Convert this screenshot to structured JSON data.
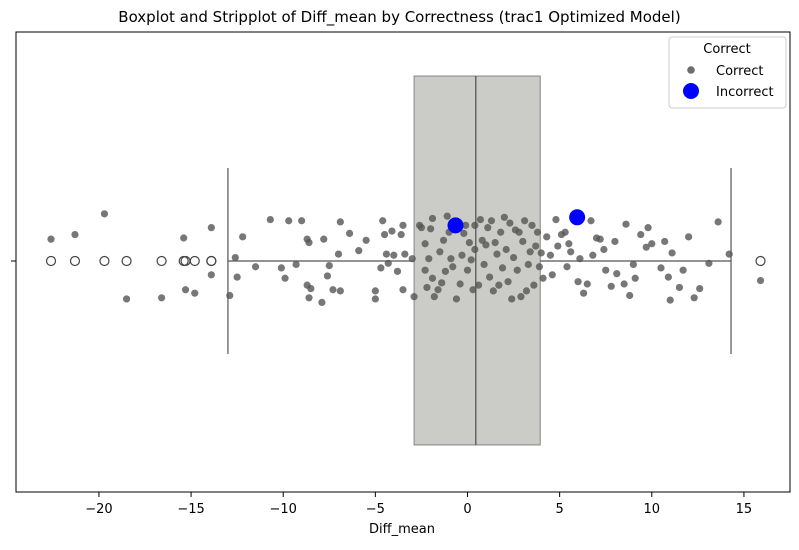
{
  "chart_data": {
    "type": "boxplot-stripplot",
    "title": "Boxplot and Stripplot of Diff_mean by Correctness (trac1 Optimized Model)",
    "xlabel": "Diff_mean",
    "ylabel": "",
    "xlim": [
      -24.5,
      17.5
    ],
    "x_ticks": [
      -20,
      -15,
      -10,
      -5,
      0,
      5,
      10,
      15
    ],
    "x_tick_labels": [
      "−20",
      "−15",
      "−10",
      "−5",
      "0",
      "5",
      "10",
      "15"
    ],
    "grid": false,
    "legend": {
      "title": "Correct",
      "placement": "top-right",
      "entries": [
        {
          "label": "Correct",
          "color": "#555555",
          "marker": "small-circle"
        },
        {
          "label": "Incorrect",
          "color": "#0000ff",
          "marker": "large-circle"
        }
      ]
    },
    "colors": {
      "box_fill": "#cbccc7",
      "box_edge": "#555555",
      "correct_points": "#555555",
      "incorrect_points": "#0000ff",
      "outlier_edge": "#444444"
    },
    "box": {
      "q1": -2.9,
      "median": 0.45,
      "q3": 3.95,
      "whisker_low": -13.0,
      "whisker_high": 14.3,
      "outliers": [
        -22.6,
        -21.3,
        -19.7,
        -18.5,
        -16.6,
        -15.4,
        -15.3,
        -14.8,
        -13.9,
        -13.9,
        15.9
      ]
    },
    "series": [
      {
        "name": "Correct",
        "points": [
          [
            -22.6,
            0.19
          ],
          [
            -21.3,
            0.23
          ],
          [
            -19.7,
            0.41
          ],
          [
            -18.5,
            -0.33
          ],
          [
            -16.6,
            -0.32
          ],
          [
            -15.4,
            0.2
          ],
          [
            -15.3,
            -0.25
          ],
          [
            -14.8,
            -0.28
          ],
          [
            -13.9,
            0.29
          ],
          [
            -13.9,
            -0.12
          ],
          [
            -12.9,
            -0.3
          ],
          [
            -12.6,
            0.03
          ],
          [
            -12.5,
            -0.14
          ],
          [
            -12.2,
            0.21
          ],
          [
            -11.5,
            -0.05
          ],
          [
            -10.7,
            0.36
          ],
          [
            -10.1,
            -0.06
          ],
          [
            -9.9,
            -0.15
          ],
          [
            -9.7,
            0.35
          ],
          [
            -9.3,
            -0.03
          ],
          [
            -9.0,
            0.35
          ],
          [
            -8.7,
            0.19
          ],
          [
            -8.6,
            0.16
          ],
          [
            -8.7,
            -0.21
          ],
          [
            -8.6,
            -0.32
          ],
          [
            -8.5,
            -0.24
          ],
          [
            -7.9,
            -0.36
          ],
          [
            -7.8,
            0.19
          ],
          [
            -7.6,
            -0.13
          ],
          [
            -7.5,
            -0.04
          ],
          [
            -7.3,
            -0.25
          ],
          [
            -7.0,
            0.06
          ],
          [
            -6.9,
            0.34
          ],
          [
            -6.9,
            -0.26
          ],
          [
            -6.4,
            0.24
          ],
          [
            -5.9,
            0.09
          ],
          [
            -5.5,
            0.18
          ],
          [
            -5.0,
            -0.26
          ],
          [
            -5.0,
            -0.33
          ],
          [
            -4.7,
            -0.06
          ],
          [
            -4.6,
            0.35
          ],
          [
            -4.5,
            0.23
          ],
          [
            -4.4,
            0.06
          ],
          [
            -4.3,
            -0.02
          ],
          [
            -4.1,
            0.26
          ],
          [
            -4.0,
            0.05
          ],
          [
            -3.8,
            -0.09
          ],
          [
            -3.6,
            0.23
          ],
          [
            -3.5,
            0.31
          ],
          [
            -3.4,
            0.06
          ],
          [
            -3.5,
            -0.25
          ],
          [
            -3.0,
            0.02
          ],
          [
            -2.9,
            -0.31
          ],
          [
            -2.6,
            0.31
          ],
          [
            -2.5,
            0.29
          ],
          [
            -2.3,
            0.15
          ],
          [
            -2.3,
            -0.08
          ],
          [
            -2.2,
            -0.23
          ],
          [
            -2.1,
            0.02
          ],
          [
            -2.0,
            0.28
          ],
          [
            -1.9,
            0.37
          ],
          [
            -1.9,
            -0.15
          ],
          [
            -1.8,
            -0.31
          ],
          [
            -1.6,
            -0.25
          ],
          [
            -1.5,
            0.08
          ],
          [
            -1.4,
            -0.19
          ],
          [
            -1.3,
            0.18
          ],
          [
            -1.2,
            -0.09
          ],
          [
            -1.1,
            0.39
          ],
          [
            -1.0,
            0.25
          ],
          [
            -0.9,
            0.02
          ],
          [
            -0.8,
            -0.05
          ],
          [
            -0.7,
            0.32
          ],
          [
            -0.6,
            -0.33
          ],
          [
            -0.4,
            -0.2
          ],
          [
            -0.3,
            0.05
          ],
          [
            -0.2,
            0.24
          ],
          [
            -0.1,
            0.31
          ],
          [
            0.0,
            -0.08
          ],
          [
            0.1,
            0.16
          ],
          [
            0.2,
            0.01
          ],
          [
            0.3,
            -0.25
          ],
          [
            0.4,
            0.31
          ],
          [
            0.4,
            0.1
          ],
          [
            0.6,
            -0.21
          ],
          [
            0.7,
            0.36
          ],
          [
            0.8,
            0.18
          ],
          [
            0.9,
            -0.03
          ],
          [
            1.0,
            0.14
          ],
          [
            1.1,
            0.29
          ],
          [
            1.2,
            -0.14
          ],
          [
            1.3,
            0.35
          ],
          [
            1.4,
            -0.26
          ],
          [
            1.5,
            0.16
          ],
          [
            1.6,
            0.06
          ],
          [
            1.7,
            -0.21
          ],
          [
            1.8,
            0.25
          ],
          [
            1.9,
            -0.06
          ],
          [
            2.0,
            0.38
          ],
          [
            2.1,
            0.1
          ],
          [
            2.2,
            -0.18
          ],
          [
            2.3,
            0.33
          ],
          [
            2.4,
            -0.33
          ],
          [
            2.5,
            0.03
          ],
          [
            2.6,
            0.27
          ],
          [
            2.7,
            -0.08
          ],
          [
            2.8,
            0.25
          ],
          [
            2.9,
            -0.31
          ],
          [
            3.0,
            0.17
          ],
          [
            3.1,
            0.35
          ],
          [
            3.2,
            -0.26
          ],
          [
            3.3,
            -0.03
          ],
          [
            3.4,
            0.08
          ],
          [
            3.5,
            0.31
          ],
          [
            3.6,
            -0.21
          ],
          [
            3.7,
            0.13
          ],
          [
            3.8,
            0.25
          ],
          [
            3.9,
            -0.05
          ],
          [
            4.0,
            0.07
          ],
          [
            4.1,
            -0.15
          ],
          [
            4.3,
            0.21
          ],
          [
            4.5,
            0.05
          ],
          [
            4.6,
            -0.12
          ],
          [
            4.8,
            0.36
          ],
          [
            4.9,
            0.13
          ],
          [
            5.1,
            0.23
          ],
          [
            5.3,
            0.25
          ],
          [
            5.4,
            -0.05
          ],
          [
            5.5,
            0.15
          ],
          [
            5.6,
            0.08
          ],
          [
            5.8,
            0.38
          ],
          [
            6.0,
            -0.18
          ],
          [
            6.1,
            0.02
          ],
          [
            6.3,
            -0.28
          ],
          [
            6.5,
            -0.2
          ],
          [
            6.7,
            0.35
          ],
          [
            6.8,
            0.05
          ],
          [
            7.0,
            0.2
          ],
          [
            7.2,
            0.19
          ],
          [
            7.4,
            0.1
          ],
          [
            7.5,
            -0.08
          ],
          [
            7.8,
            -0.22
          ],
          [
            8.0,
            0.17
          ],
          [
            8.1,
            -0.11
          ],
          [
            8.5,
            -0.2
          ],
          [
            8.6,
            0.32
          ],
          [
            8.8,
            -0.3
          ],
          [
            9.0,
            -0.03
          ],
          [
            9.1,
            -0.15
          ],
          [
            9.4,
            0.23
          ],
          [
            9.7,
            0.12
          ],
          [
            9.8,
            0.29
          ],
          [
            10.0,
            0.15
          ],
          [
            10.5,
            -0.06
          ],
          [
            10.7,
            0.17
          ],
          [
            10.9,
            -0.14
          ],
          [
            11.0,
            -0.34
          ],
          [
            11.1,
            0.07
          ],
          [
            11.5,
            -0.23
          ],
          [
            11.7,
            -0.08
          ],
          [
            12.0,
            0.21
          ],
          [
            12.3,
            -0.32
          ],
          [
            12.6,
            -0.24
          ],
          [
            13.1,
            -0.02
          ],
          [
            13.6,
            0.34
          ],
          [
            14.2,
            0.06
          ],
          [
            15.9,
            -0.17
          ]
        ]
      },
      {
        "name": "Incorrect",
        "points": [
          [
            -0.65,
            0.31
          ],
          [
            5.95,
            0.38
          ]
        ]
      }
    ]
  }
}
